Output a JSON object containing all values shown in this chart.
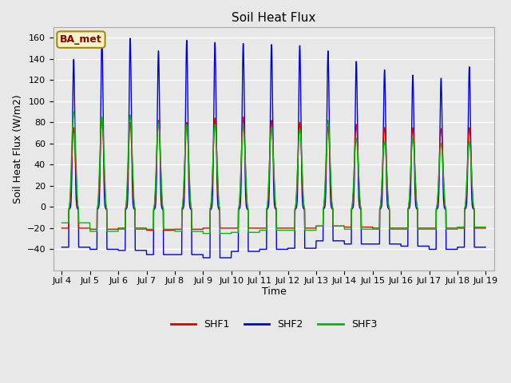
{
  "title": "Soil Heat Flux",
  "ylabel": "Soil Heat Flux (W/m2)",
  "xlabel": "Time",
  "ylim": [
    -60,
    170
  ],
  "yticks": [
    -40,
    -20,
    0,
    20,
    40,
    60,
    80,
    100,
    120,
    140,
    160
  ],
  "background_color": "#e8e8e8",
  "plot_bg_color": "#e8e8e8",
  "grid_color": "white",
  "series_colors": {
    "SHF1": "#dd0000",
    "SHF2": "#0000dd",
    "SHF3": "#00bb00"
  },
  "legend_label": "BA_met",
  "legend_label_color": "#8b0000",
  "legend_label_bg": "#f5f5c8",
  "n_days": 15,
  "start_day": 4,
  "points_per_day": 144,
  "day_peaks_SHF1": [
    75,
    82,
    80,
    82,
    80,
    84,
    85,
    82,
    80,
    76,
    78,
    75,
    75,
    74,
    75
  ],
  "day_peaks_SHF2": [
    140,
    162,
    160,
    148,
    158,
    156,
    155,
    154,
    153,
    148,
    138,
    130,
    125,
    122,
    133
  ],
  "day_peaks_SHF3": [
    90,
    85,
    87,
    80,
    78,
    78,
    76,
    75,
    74,
    82,
    65,
    62,
    65,
    60,
    62
  ],
  "night_min_SHF1": [
    -20,
    -21,
    -20,
    -22,
    -21,
    -20,
    -20,
    -20,
    -20,
    -18,
    -19,
    -20,
    -20,
    -20,
    -20
  ],
  "night_min_SHF2": [
    -38,
    -40,
    -41,
    -45,
    -45,
    -48,
    -42,
    -40,
    -39,
    -32,
    -35,
    -35,
    -37,
    -40,
    -38
  ],
  "night_min_SHF3": [
    -15,
    -23,
    -21,
    -21,
    -23,
    -25,
    -24,
    -22,
    -22,
    -18,
    -21,
    -21,
    -21,
    -21,
    -19
  ],
  "title_fontsize": 11,
  "axis_label_fontsize": 9,
  "tick_fontsize": 8,
  "legend_fontsize": 9,
  "linewidth": 1.0,
  "figwidth": 6.4,
  "figheight": 4.8,
  "dpi": 100
}
